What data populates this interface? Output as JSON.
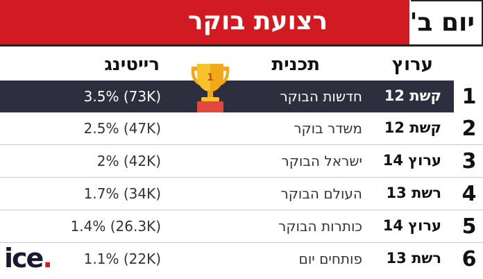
{
  "header": {
    "title": "רצועת בוקר",
    "day": "יום ב'"
  },
  "columns": {
    "channel": "ערוץ",
    "program": "תכנית",
    "rating": "רייטינג"
  },
  "rows": [
    {
      "rank": "1",
      "channel": "קשת 12",
      "program": "חדשות הבוקר",
      "rating": "3.5% (73K)"
    },
    {
      "rank": "2",
      "channel": "קשת 12",
      "program": "משדר בוקר",
      "rating": "2.5% (47K)"
    },
    {
      "rank": "3",
      "channel": "ערוץ 14",
      "program": "ישראל הבוקר",
      "rating": "2% (42K)"
    },
    {
      "rank": "4",
      "channel": "רשת 13",
      "program": "העולם הבוקר",
      "rating": "1.7% (34K)"
    },
    {
      "rank": "5",
      "channel": "ערוץ 14",
      "program": "כותרות הבוקר",
      "rating": "1.4% (26.3K)"
    },
    {
      "rank": "6",
      "channel": "רשת 13",
      "program": "פותחים יום",
      "rating": "1.1% (22K)"
    }
  ],
  "trophy": {
    "icon": "trophy-icon",
    "number": "1"
  },
  "logo": {
    "text": "ice",
    "dot": "."
  },
  "colors": {
    "accent": "#d21a22",
    "highlight_row": "#2d2f3e"
  }
}
